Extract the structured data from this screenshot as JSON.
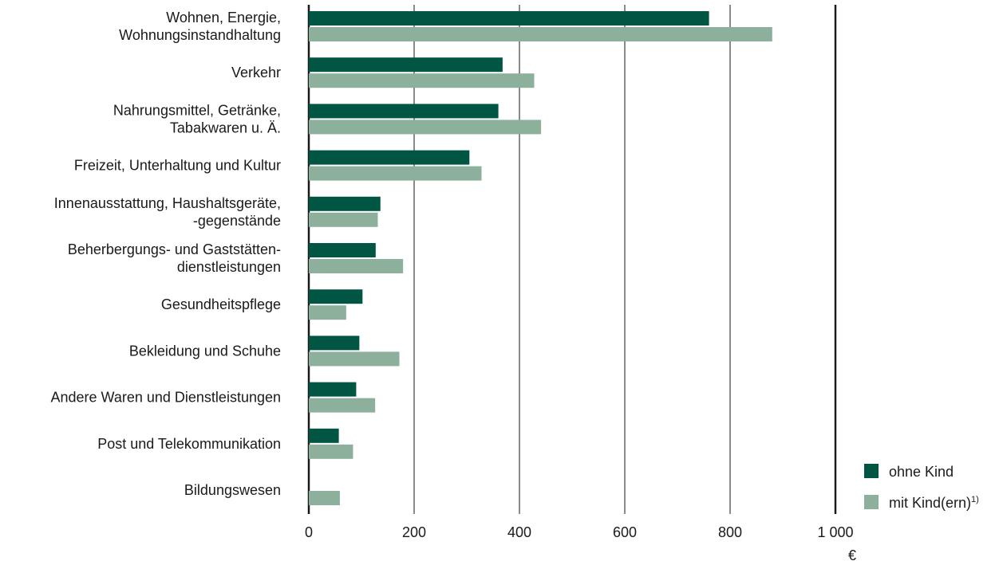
{
  "colors": {
    "ohne": "#005643",
    "mit": "#8cb09c",
    "grid": "#8a8a8a",
    "axis": "#1a1a1a"
  },
  "chart_data": {
    "type": "bar",
    "orientation": "horizontal",
    "title": "",
    "xlabel": "",
    "ylabel": "",
    "unit": "€",
    "xlim": [
      0,
      1000
    ],
    "xticks": [
      0,
      200,
      400,
      600,
      800,
      1000
    ],
    "xtick_labels": [
      "0",
      "200",
      "400",
      "600",
      "800",
      "1 000"
    ],
    "grid": true,
    "legend_position": "bottom-right",
    "categories": [
      [
        "Wohnen, Energie,",
        "Wohnungsinstandhaltung"
      ],
      [
        "Verkehr"
      ],
      [
        "Nahrungsmittel, Getränke,",
        "Tabakwaren u. Ä."
      ],
      [
        "Freizeit, Unterhaltung und Kultur"
      ],
      [
        "Innenausstattung, Haushaltsgeräte,",
        "-gegenstände"
      ],
      [
        "Beherbergungs- und Gaststätten-",
        "dienstleistungen"
      ],
      [
        "Gesundheitspflege"
      ],
      [
        "Bekleidung und Schuhe"
      ],
      [
        "Andere Waren und Dienstleistungen"
      ],
      [
        "Post und Telekommunikation"
      ],
      [
        "Bildungswesen"
      ]
    ],
    "series": [
      {
        "name": "ohne Kind",
        "values": [
          760,
          368,
          360,
          305,
          136,
          127,
          102,
          96,
          90,
          57,
          0
        ]
      },
      {
        "name": "mit Kind(ern)",
        "name_sup": "1)",
        "values": [
          880,
          428,
          441,
          328,
          131,
          179,
          71,
          172,
          126,
          84,
          59
        ]
      }
    ]
  }
}
